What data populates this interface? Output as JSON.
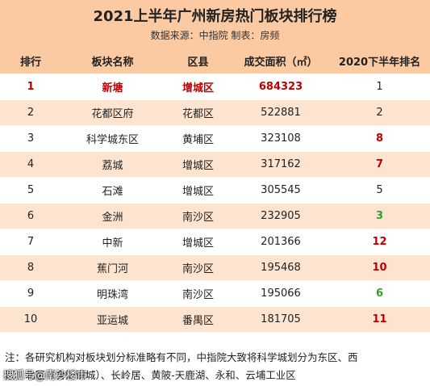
{
  "header": {
    "title": "2021上半年广州新房热门板块排行榜",
    "subtitle": "数据来源：中指院     制表：房频"
  },
  "table": {
    "columns": [
      "排行",
      "板块名称",
      "区县",
      "成交面积（㎡）",
      "2020下半年排名"
    ],
    "rows": [
      {
        "rank": "1",
        "name": "新塘",
        "district": "增城区",
        "area": "684323",
        "prev_rank": "1",
        "highlight": true,
        "prev_color": "normal"
      },
      {
        "rank": "2",
        "name": "花都区府",
        "district": "花都区",
        "area": "522881",
        "prev_rank": "2",
        "highlight": false,
        "prev_color": "normal"
      },
      {
        "rank": "3",
        "name": "科学城东区",
        "district": "黄埔区",
        "area": "323108",
        "prev_rank": "8",
        "highlight": false,
        "prev_color": "red"
      },
      {
        "rank": "4",
        "name": "荔城",
        "district": "增城区",
        "area": "317162",
        "prev_rank": "7",
        "highlight": false,
        "prev_color": "red"
      },
      {
        "rank": "5",
        "name": "石滩",
        "district": "增城区",
        "area": "305545",
        "prev_rank": "5",
        "highlight": false,
        "prev_color": "normal"
      },
      {
        "rank": "6",
        "name": "金洲",
        "district": "南沙区",
        "area": "232905",
        "prev_rank": "3",
        "highlight": false,
        "prev_color": "green"
      },
      {
        "rank": "7",
        "name": "中新",
        "district": "增城区",
        "area": "201366",
        "prev_rank": "12",
        "highlight": false,
        "prev_color": "red"
      },
      {
        "rank": "8",
        "name": "蕉门河",
        "district": "南沙区",
        "area": "195468",
        "prev_rank": "10",
        "highlight": false,
        "prev_color": "red"
      },
      {
        "rank": "9",
        "name": "明珠湾",
        "district": "南沙区",
        "area": "195066",
        "prev_rank": "6",
        "highlight": false,
        "prev_color": "green"
      },
      {
        "rank": "10",
        "name": "亚运城",
        "district": "番禺区",
        "area": "181705",
        "prev_rank": "11",
        "highlight": false,
        "prev_color": "red"
      }
    ]
  },
  "footnote": {
    "line1": "注：各研究机构对板块划分标准略有不同，中指院大致将科学城划分为东区、西",
    "line2": "区、北区（含知识城）、长岭居、黄陂-天鹿湖、永和、云埔工业区"
  },
  "watermark": "搜狐号@南沙楼市",
  "colors": {
    "header_bg": "#fbc9a2",
    "stripe_bg": "#fde4d0",
    "highlight_red": "#c00000",
    "rise_green": "#2e9e2e"
  }
}
